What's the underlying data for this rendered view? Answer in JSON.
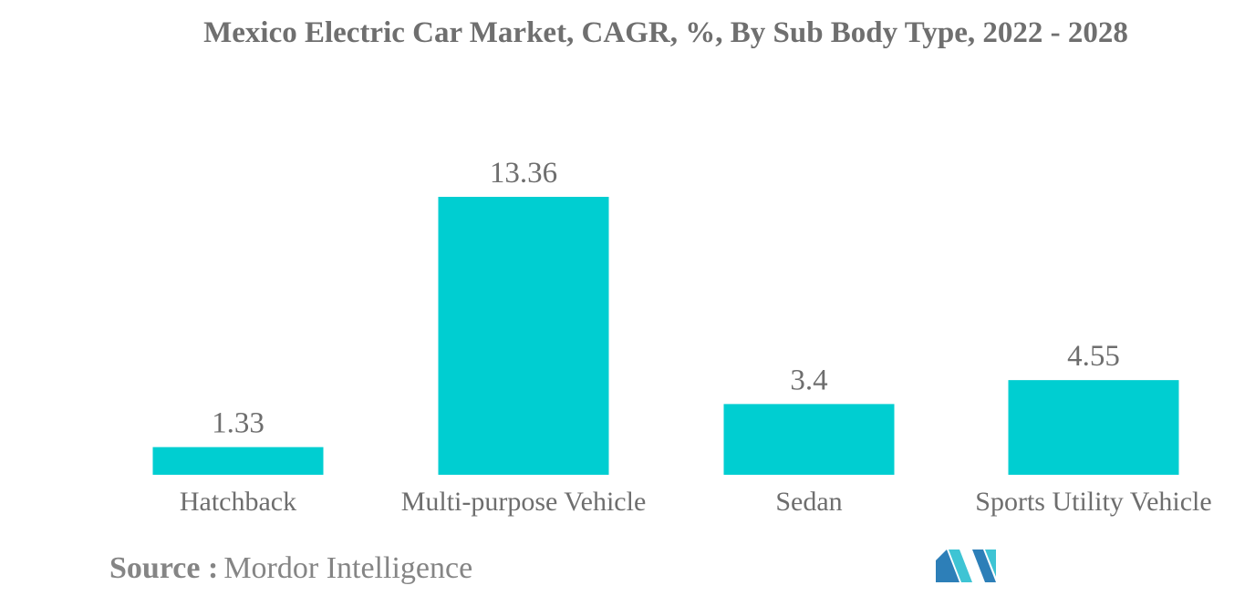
{
  "chart_data": {
    "type": "bar",
    "title": "Mexico Electric Car Market, CAGR, %, By Sub Body Type, 2022 - 2028",
    "categories": [
      "Hatchback",
      "Multi-purpose Vehicle",
      "Sedan",
      "Sports Utility Vehicle"
    ],
    "values": [
      1.33,
      13.36,
      3.4,
      4.55
    ],
    "value_labels": [
      "1.33",
      "13.36",
      "3.4",
      "4.55"
    ],
    "xlabel": "",
    "ylabel": "",
    "ylim": [
      0,
      13.36
    ],
    "grid": false,
    "legend": "none",
    "bar_color": "#00CED1"
  },
  "source": {
    "label": "Source :",
    "value": "Mordor Intelligence"
  },
  "colors": {
    "title": "#6f6f6f",
    "text": "#6e6e6e",
    "logo_dark": "#2d7fb8",
    "logo_light": "#3ec4d4"
  }
}
